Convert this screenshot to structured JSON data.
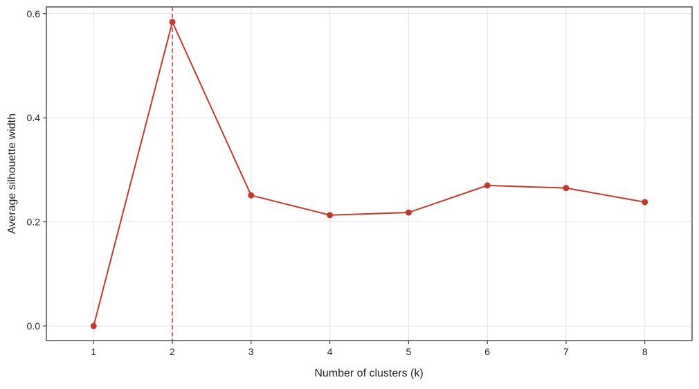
{
  "chart_data": {
    "type": "line",
    "x_label": "Number of clusters (k)",
    "y_label": "Average silhouette width",
    "x": [
      1,
      2,
      3,
      4,
      5,
      6,
      7,
      8
    ],
    "series": [
      {
        "name": "silhouette",
        "color": "#c1392b",
        "values": [
          0,
          0.584,
          0.251,
          0.213,
          0.218,
          0.27,
          0.265,
          0.238
        ]
      }
    ],
    "vline": 2,
    "xlim": [
      0.4,
      8.6
    ],
    "xticks": [
      1,
      2,
      3,
      4,
      5,
      6,
      7,
      8
    ],
    "ylim": [
      -0.028,
      0.613
    ],
    "yticks": [
      {
        "value": 0,
        "label": "0.0"
      },
      0.2,
      0.4,
      0.6
    ],
    "grid": true
  }
}
